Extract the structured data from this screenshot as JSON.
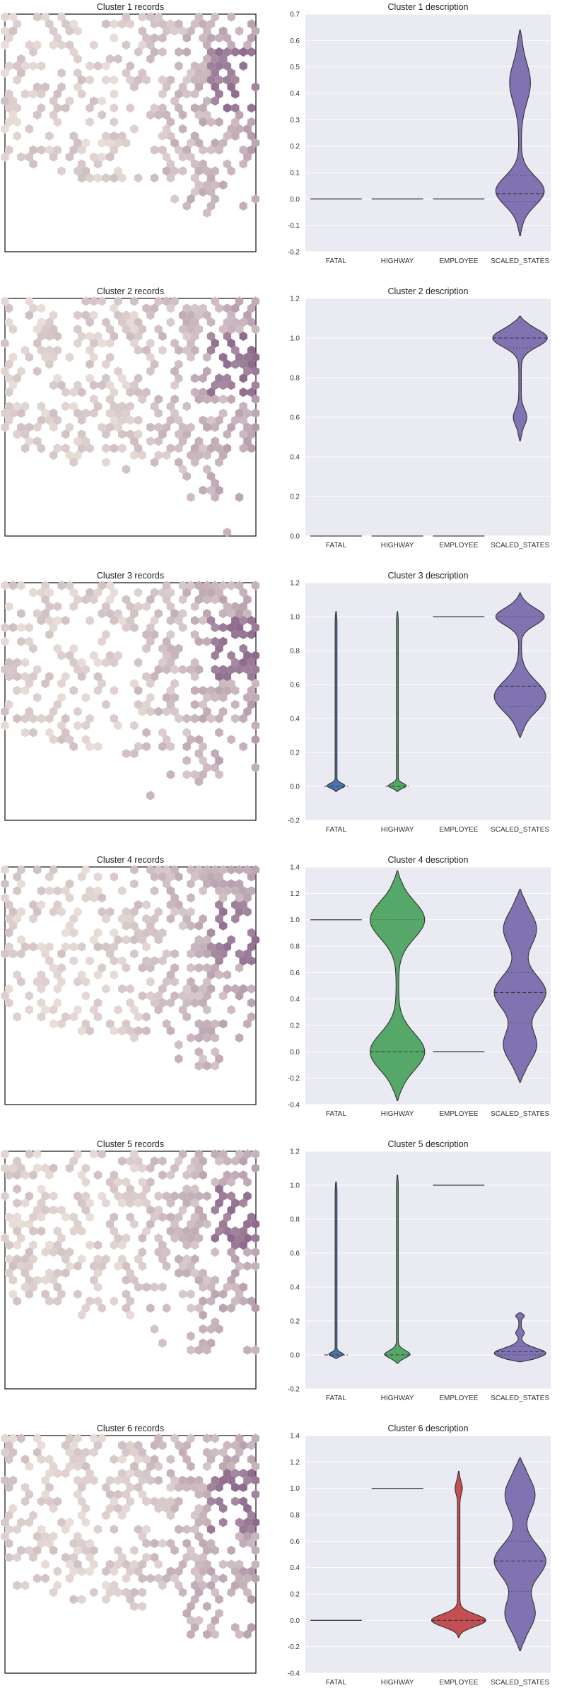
{
  "colors": {
    "plot_background": "#eaeaf2",
    "grid": "#ffffff",
    "map_frame": "#222222",
    "hex_low": "#f3ece0",
    "hex_high": "#8e6b8d",
    "FATAL": "#4c72b0",
    "HIGHWAY": "#55a868",
    "EMPLOYEE": "#c44e52",
    "SCALED_STATES": "#8172b2"
  },
  "chart_data": [
    {
      "type": "hexbin",
      "title": "Cluster 1 records",
      "density": "sparse-west, dense-northeast",
      "seed": 11
    },
    {
      "type": "violin",
      "title": "Cluster 2 description",
      "title_override_index": 0,
      "categories": [
        "FATAL",
        "HIGHWAY",
        "EMPLOYEE",
        "SCALED_STATES"
      ],
      "yticks": [
        "-0.2",
        "-0.1",
        "0.0",
        "0.1",
        "0.2",
        "0.3",
        "0.4",
        "0.5",
        "0.6",
        "0.7"
      ],
      "ylim": [
        -0.2,
        0.7
      ],
      "violins": [
        {
          "category": "FATAL",
          "kind": "line",
          "value": 0.0
        },
        {
          "category": "HIGHWAY",
          "kind": "line",
          "value": 0.0
        },
        {
          "category": "EMPLOYEE",
          "kind": "line",
          "value": 0.0
        },
        {
          "category": "SCALED_STATES",
          "kind": "violin",
          "min": -0.14,
          "max": 0.64,
          "modes": [
            {
              "center": 0.03,
              "width": 0.075,
              "spread": 0.055
            },
            {
              "center": 0.44,
              "width": 0.03,
              "spread": 0.075
            }
          ],
          "median": 0.02,
          "q1": -0.01,
          "q3": 0.09
        }
      ]
    },
    {
      "type": "hexbin",
      "title": "Cluster 2 records",
      "seed": 22
    },
    {
      "type": "violin",
      "title": "Cluster 2 description",
      "categories": [
        "FATAL",
        "HIGHWAY",
        "EMPLOYEE",
        "SCALED_STATES"
      ],
      "yticks": [
        "0.0",
        "0.2",
        "0.4",
        "0.6",
        "0.8",
        "1.0",
        "1.2"
      ],
      "ylim": [
        0.0,
        1.2
      ],
      "violins": [
        {
          "category": "FATAL",
          "kind": "line",
          "value": 0.0
        },
        {
          "category": "HIGHWAY",
          "kind": "line",
          "value": 0.0
        },
        {
          "category": "EMPLOYEE",
          "kind": "line",
          "value": 0.0
        },
        {
          "category": "SCALED_STATES",
          "kind": "violin",
          "min": 0.48,
          "max": 1.11,
          "modes": [
            {
              "center": 1.0,
              "width": 0.085,
              "spread": 0.045
            },
            {
              "center": 0.6,
              "width": 0.018,
              "spread": 0.04
            }
          ],
          "median": 1.0,
          "q1": 0.95,
          "q3": 1.0
        }
      ]
    },
    {
      "type": "hexbin",
      "title": "Cluster 3 records",
      "seed": 33
    },
    {
      "type": "violin",
      "title": "Cluster 3 description",
      "categories": [
        "FATAL",
        "HIGHWAY",
        "EMPLOYEE",
        "SCALED_STATES"
      ],
      "yticks": [
        "-0.2",
        "0.0",
        "0.2",
        "0.4",
        "0.6",
        "0.8",
        "1.0",
        "1.2"
      ],
      "ylim": [
        -0.2,
        1.2
      ],
      "violins": [
        {
          "category": "FATAL",
          "kind": "violin",
          "min": -0.03,
          "max": 1.03,
          "modes": [
            {
              "center": 0.0,
              "width": 0.035,
              "spread": 0.015
            }
          ],
          "tailwidth": 0.003,
          "median": 0.0,
          "q1": 0.0,
          "q3": 0.0
        },
        {
          "category": "HIGHWAY",
          "kind": "violin",
          "min": -0.03,
          "max": 1.03,
          "modes": [
            {
              "center": 0.0,
              "width": 0.035,
              "spread": 0.015
            }
          ],
          "tailwidth": 0.003,
          "median": 0.0,
          "q1": 0.0,
          "q3": 0.0
        },
        {
          "category": "EMPLOYEE",
          "kind": "line",
          "value": 1.0
        },
        {
          "category": "SCALED_STATES",
          "kind": "violin",
          "min": 0.29,
          "max": 1.14,
          "modes": [
            {
              "center": 1.0,
              "width": 0.075,
              "spread": 0.05
            },
            {
              "center": 0.53,
              "width": 0.08,
              "spread": 0.09
            }
          ],
          "median": 0.59,
          "q1": 0.47,
          "q3": 1.0
        }
      ]
    },
    {
      "type": "hexbin",
      "title": "Cluster 4 records",
      "seed": 44
    },
    {
      "type": "violin",
      "title": "Cluster 4 description",
      "categories": [
        "FATAL",
        "HIGHWAY",
        "EMPLOYEE",
        "SCALED_STATES"
      ],
      "yticks": [
        "-0.4",
        "-0.2",
        "0.0",
        "0.2",
        "0.4",
        "0.6",
        "0.8",
        "1.0",
        "1.2",
        "1.4"
      ],
      "ylim": [
        -0.4,
        1.4
      ],
      "violins": [
        {
          "category": "FATAL",
          "kind": "line",
          "value": 1.0
        },
        {
          "category": "HIGHWAY",
          "kind": "violin",
          "min": -0.37,
          "max": 1.37,
          "modes": [
            {
              "center": 1.0,
              "width": 0.085,
              "spread": 0.14
            },
            {
              "center": 0.0,
              "width": 0.085,
              "spread": 0.14
            }
          ],
          "median": 0.0,
          "q1": 0.0,
          "q3": 1.0
        },
        {
          "category": "EMPLOYEE",
          "kind": "line",
          "value": 0.0
        },
        {
          "category": "SCALED_STATES",
          "kind": "violin",
          "min": -0.23,
          "max": 1.23,
          "modes": [
            {
              "center": 0.93,
              "width": 0.05,
              "spread": 0.13
            },
            {
              "center": 0.45,
              "width": 0.08,
              "spread": 0.13
            },
            {
              "center": 0.05,
              "width": 0.05,
              "spread": 0.12
            }
          ],
          "median": 0.45,
          "q1": 0.22,
          "q3": 0.6
        }
      ]
    },
    {
      "type": "hexbin",
      "title": "Cluster 5 records",
      "seed": 55
    },
    {
      "type": "violin",
      "title": "Cluster 5 description",
      "categories": [
        "FATAL",
        "HIGHWAY",
        "EMPLOYEE",
        "SCALED_STATES"
      ],
      "yticks": [
        "-0.2",
        "0.0",
        "0.2",
        "0.4",
        "0.6",
        "0.8",
        "1.0",
        "1.2"
      ],
      "ylim": [
        -0.2,
        1.2
      ],
      "violins": [
        {
          "category": "FATAL",
          "kind": "violin",
          "min": -0.02,
          "max": 1.02,
          "modes": [
            {
              "center": 0.0,
              "width": 0.035,
              "spread": 0.012
            }
          ],
          "tailwidth": 0.003,
          "median": 0.0,
          "q1": 0.0,
          "q3": 0.0
        },
        {
          "category": "HIGHWAY",
          "kind": "violin",
          "min": -0.05,
          "max": 1.06,
          "modes": [
            {
              "center": 0.0,
              "width": 0.04,
              "spread": 0.025
            }
          ],
          "tailwidth": 0.003,
          "median": 0.0,
          "q1": 0.0,
          "q3": 0.0
        },
        {
          "category": "EMPLOYEE",
          "kind": "line",
          "value": 1.0
        },
        {
          "category": "SCALED_STATES",
          "kind": "violin",
          "min": -0.04,
          "max": 0.25,
          "modes": [
            {
              "center": 0.01,
              "width": 0.08,
              "spread": 0.03
            },
            {
              "center": 0.13,
              "width": 0.01,
              "spread": 0.015
            },
            {
              "center": 0.23,
              "width": 0.01,
              "spread": 0.012
            }
          ],
          "median": 0.02,
          "q1": 0.0,
          "q3": 0.05
        }
      ]
    },
    {
      "type": "hexbin",
      "title": "Cluster 6 records",
      "seed": 66
    },
    {
      "type": "violin",
      "title": "Cluster 6 description",
      "categories": [
        "FATAL",
        "HIGHWAY",
        "EMPLOYEE",
        "SCALED_STATES"
      ],
      "yticks": [
        "-0.4",
        "-0.2",
        "0.0",
        "0.2",
        "0.4",
        "0.6",
        "0.8",
        "1.0",
        "1.2",
        "1.4"
      ],
      "ylim": [
        -0.4,
        1.4
      ],
      "violins": [
        {
          "category": "FATAL",
          "kind": "line",
          "value": 0.0
        },
        {
          "category": "HIGHWAY",
          "kind": "line",
          "value": 1.0
        },
        {
          "category": "EMPLOYEE",
          "kind": "violin",
          "min": -0.13,
          "max": 1.13,
          "modes": [
            {
              "center": 0.0,
              "width": 0.085,
              "spread": 0.045
            },
            {
              "center": 1.0,
              "width": 0.008,
              "spread": 0.04
            }
          ],
          "tailwidth": 0.004,
          "median": 0.0,
          "q1": 0.0,
          "q3": 0.0
        },
        {
          "category": "SCALED_STATES",
          "kind": "violin",
          "min": -0.23,
          "max": 1.23,
          "modes": [
            {
              "center": 0.95,
              "width": 0.045,
              "spread": 0.13
            },
            {
              "center": 0.45,
              "width": 0.08,
              "spread": 0.13
            },
            {
              "center": 0.05,
              "width": 0.045,
              "spread": 0.12
            }
          ],
          "median": 0.45,
          "q1": 0.22,
          "q3": 0.6
        }
      ]
    }
  ]
}
